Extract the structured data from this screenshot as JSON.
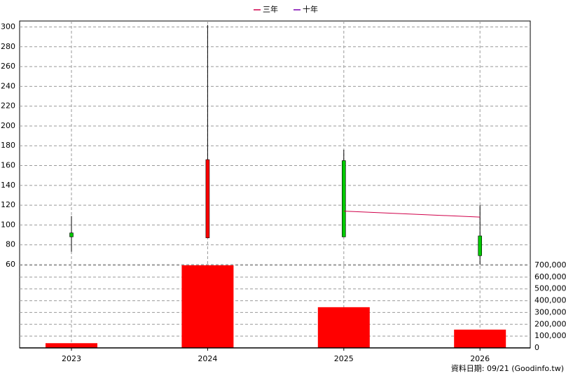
{
  "chart_data": {
    "type": "candlestick",
    "categories": [
      "2023",
      "2024",
      "2025",
      "2026"
    ],
    "open": [
      92,
      87,
      165,
      89
    ],
    "high": [
      109,
      302,
      176,
      120
    ],
    "low": [
      73,
      87,
      88,
      60
    ],
    "close": [
      88,
      166,
      88,
      69
    ],
    "up_color": "#ff0000",
    "down_color": "#00c800",
    "volume": [
      40000,
      700000,
      345000,
      155000
    ],
    "volume_color": "#ff0000",
    "series": [
      {
        "name": "三年",
        "color": "#d0004a",
        "values": [
          null,
          null,
          114,
          108
        ]
      },
      {
        "name": "十年",
        "color": "#7a00b0",
        "values": [
          null,
          null,
          null,
          null
        ]
      }
    ],
    "ylim": [
      60,
      306
    ],
    "yticks": [
      60,
      80,
      100,
      120,
      140,
      160,
      180,
      200,
      220,
      240,
      260,
      280,
      300
    ],
    "y2lim": [
      0,
      700000
    ],
    "y2ticks": [
      0,
      {
        "value": 100000,
        "label": "100,000"
      },
      {
        "value": 200000,
        "label": "200,000"
      },
      {
        "value": 300000,
        "label": "300,000"
      },
      {
        "value": 400000,
        "label": "400,000"
      },
      {
        "value": 500000,
        "label": "500,000"
      },
      {
        "value": 600000,
        "label": "600,000"
      },
      {
        "value": 700000,
        "label": "700,000"
      }
    ],
    "grid": true,
    "legend": "top",
    "footer": "資料日期: 09/21  (Goodinfo.tw)"
  }
}
